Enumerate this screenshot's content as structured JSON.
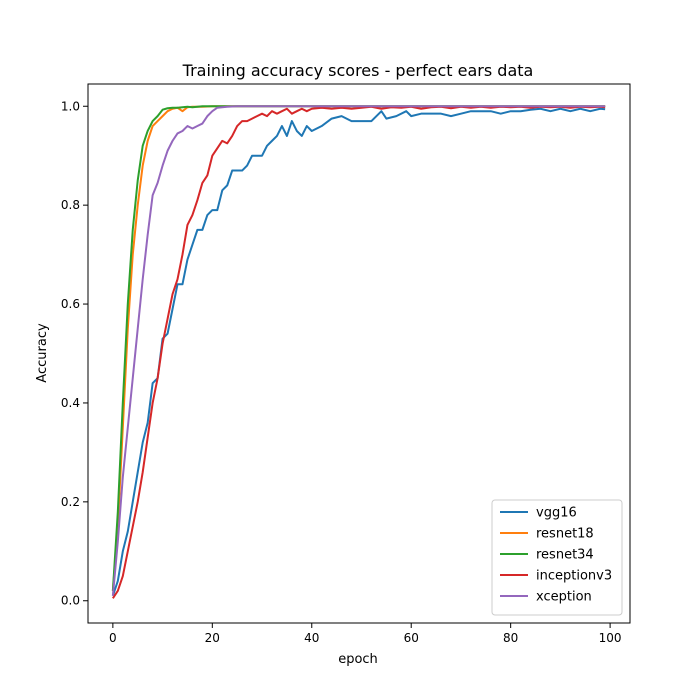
{
  "chart_data": {
    "type": "line",
    "title": "Training accuracy scores - perfect ears data",
    "xlabel": "epoch",
    "ylabel": "Accuracy",
    "xlim": [
      -5,
      104
    ],
    "ylim": [
      -0.045,
      1.045
    ],
    "xticks": [
      0,
      20,
      40,
      60,
      80,
      100
    ],
    "yticks": [
      0.0,
      0.2,
      0.4,
      0.6,
      0.8,
      1.0
    ],
    "xtick_labels": [
      "0",
      "20",
      "40",
      "60",
      "80",
      "100"
    ],
    "ytick_labels": [
      "0.0",
      "0.2",
      "0.4",
      "0.6",
      "0.8",
      "1.0"
    ],
    "grid": false,
    "legend": "bottom-right",
    "series": [
      {
        "name": "vgg16",
        "color": "#1f77b4",
        "points": [
          [
            0,
            0.01
          ],
          [
            1,
            0.04
          ],
          [
            2,
            0.1
          ],
          [
            3,
            0.14
          ],
          [
            4,
            0.2
          ],
          [
            5,
            0.26
          ],
          [
            6,
            0.32
          ],
          [
            7,
            0.36
          ],
          [
            8,
            0.44
          ],
          [
            9,
            0.45
          ],
          [
            10,
            0.53
          ],
          [
            11,
            0.54
          ],
          [
            12,
            0.59
          ],
          [
            13,
            0.64
          ],
          [
            14,
            0.64
          ],
          [
            15,
            0.69
          ],
          [
            16,
            0.72
          ],
          [
            17,
            0.75
          ],
          [
            18,
            0.75
          ],
          [
            19,
            0.78
          ],
          [
            20,
            0.79
          ],
          [
            21,
            0.79
          ],
          [
            22,
            0.83
          ],
          [
            23,
            0.84
          ],
          [
            24,
            0.87
          ],
          [
            25,
            0.87
          ],
          [
            26,
            0.87
          ],
          [
            27,
            0.88
          ],
          [
            28,
            0.9
          ],
          [
            29,
            0.9
          ],
          [
            30,
            0.9
          ],
          [
            31,
            0.92
          ],
          [
            32,
            0.93
          ],
          [
            33,
            0.94
          ],
          [
            34,
            0.96
          ],
          [
            35,
            0.94
          ],
          [
            36,
            0.97
          ],
          [
            37,
            0.95
          ],
          [
            38,
            0.94
          ],
          [
            39,
            0.96
          ],
          [
            40,
            0.95
          ],
          [
            42,
            0.96
          ],
          [
            44,
            0.975
          ],
          [
            46,
            0.98
          ],
          [
            48,
            0.97
          ],
          [
            50,
            0.97
          ],
          [
            52,
            0.97
          ],
          [
            54,
            0.99
          ],
          [
            55,
            0.975
          ],
          [
            57,
            0.98
          ],
          [
            59,
            0.99
          ],
          [
            60,
            0.98
          ],
          [
            62,
            0.985
          ],
          [
            64,
            0.985
          ],
          [
            66,
            0.985
          ],
          [
            68,
            0.98
          ],
          [
            70,
            0.985
          ],
          [
            72,
            0.99
          ],
          [
            74,
            0.99
          ],
          [
            76,
            0.99
          ],
          [
            78,
            0.985
          ],
          [
            80,
            0.99
          ],
          [
            82,
            0.99
          ],
          [
            84,
            0.993
          ],
          [
            86,
            0.995
          ],
          [
            88,
            0.99
          ],
          [
            90,
            0.995
          ],
          [
            92,
            0.99
          ],
          [
            94,
            0.995
          ],
          [
            96,
            0.99
          ],
          [
            98,
            0.995
          ],
          [
            99,
            0.994
          ]
        ]
      },
      {
        "name": "resnet18",
        "color": "#ff7f0e",
        "points": [
          [
            0,
            0.02
          ],
          [
            1,
            0.15
          ],
          [
            2,
            0.35
          ],
          [
            3,
            0.55
          ],
          [
            4,
            0.7
          ],
          [
            5,
            0.8
          ],
          [
            6,
            0.88
          ],
          [
            7,
            0.93
          ],
          [
            8,
            0.96
          ],
          [
            9,
            0.97
          ],
          [
            10,
            0.98
          ],
          [
            11,
            0.99
          ],
          [
            12,
            0.995
          ],
          [
            13,
            0.997
          ],
          [
            14,
            0.99
          ],
          [
            15,
            0.998
          ],
          [
            16,
            0.999
          ],
          [
            18,
            0.999
          ],
          [
            20,
            1.0
          ],
          [
            25,
            1.0
          ],
          [
            30,
            1.0
          ],
          [
            40,
            1.0
          ],
          [
            50,
            1.0
          ],
          [
            60,
            1.0
          ],
          [
            70,
            1.0
          ],
          [
            80,
            1.0
          ],
          [
            90,
            1.0
          ],
          [
            99,
            1.0
          ]
        ]
      },
      {
        "name": "resnet34",
        "color": "#2ca02c",
        "points": [
          [
            0,
            0.02
          ],
          [
            1,
            0.18
          ],
          [
            2,
            0.4
          ],
          [
            3,
            0.6
          ],
          [
            4,
            0.75
          ],
          [
            5,
            0.85
          ],
          [
            6,
            0.92
          ],
          [
            7,
            0.95
          ],
          [
            8,
            0.97
          ],
          [
            9,
            0.98
          ],
          [
            10,
            0.993
          ],
          [
            11,
            0.996
          ],
          [
            12,
            0.997
          ],
          [
            13,
            0.997
          ],
          [
            14,
            0.998
          ],
          [
            15,
            0.999
          ],
          [
            16,
            0.998
          ],
          [
            17,
            0.999
          ],
          [
            18,
            1.0
          ],
          [
            20,
            1.0
          ],
          [
            25,
            1.0
          ],
          [
            30,
            1.0
          ],
          [
            40,
            1.0
          ],
          [
            50,
            1.0
          ],
          [
            60,
            1.0
          ],
          [
            70,
            1.0
          ],
          [
            80,
            1.0
          ],
          [
            90,
            1.0
          ],
          [
            99,
            1.0
          ]
        ]
      },
      {
        "name": "inceptionv3",
        "color": "#d62728",
        "points": [
          [
            0,
            0.005
          ],
          [
            1,
            0.02
          ],
          [
            2,
            0.05
          ],
          [
            3,
            0.1
          ],
          [
            4,
            0.15
          ],
          [
            5,
            0.2
          ],
          [
            6,
            0.26
          ],
          [
            7,
            0.33
          ],
          [
            8,
            0.4
          ],
          [
            9,
            0.45
          ],
          [
            10,
            0.52
          ],
          [
            11,
            0.57
          ],
          [
            12,
            0.62
          ],
          [
            13,
            0.65
          ],
          [
            14,
            0.7
          ],
          [
            15,
            0.76
          ],
          [
            16,
            0.78
          ],
          [
            17,
            0.81
          ],
          [
            18,
            0.845
          ],
          [
            19,
            0.86
          ],
          [
            20,
            0.9
          ],
          [
            21,
            0.915
          ],
          [
            22,
            0.93
          ],
          [
            23,
            0.925
          ],
          [
            24,
            0.94
          ],
          [
            25,
            0.96
          ],
          [
            26,
            0.97
          ],
          [
            27,
            0.97
          ],
          [
            28,
            0.975
          ],
          [
            29,
            0.98
          ],
          [
            30,
            0.985
          ],
          [
            31,
            0.98
          ],
          [
            32,
            0.99
          ],
          [
            33,
            0.985
          ],
          [
            34,
            0.99
          ],
          [
            35,
            0.995
          ],
          [
            36,
            0.985
          ],
          [
            37,
            0.99
          ],
          [
            38,
            0.995
          ],
          [
            39,
            0.99
          ],
          [
            40,
            0.995
          ],
          [
            42,
            0.997
          ],
          [
            44,
            0.995
          ],
          [
            46,
            0.997
          ],
          [
            48,
            0.995
          ],
          [
            50,
            0.997
          ],
          [
            52,
            0.999
          ],
          [
            54,
            0.995
          ],
          [
            56,
            0.998
          ],
          [
            58,
            0.997
          ],
          [
            60,
            0.999
          ],
          [
            62,
            0.995
          ],
          [
            64,
            0.998
          ],
          [
            66,
            0.999
          ],
          [
            68,
            0.996
          ],
          [
            70,
            0.999
          ],
          [
            72,
            0.997
          ],
          [
            74,
            0.999
          ],
          [
            76,
            0.997
          ],
          [
            78,
            0.999
          ],
          [
            80,
            0.998
          ],
          [
            82,
            0.999
          ],
          [
            84,
            0.997
          ],
          [
            86,
            0.999
          ],
          [
            88,
            0.998
          ],
          [
            90,
            0.999
          ],
          [
            92,
            0.997
          ],
          [
            94,
            0.999
          ],
          [
            96,
            0.998
          ],
          [
            98,
            0.999
          ],
          [
            99,
            0.998
          ]
        ]
      },
      {
        "name": "xception",
        "color": "#9467bd",
        "points": [
          [
            0,
            0.01
          ],
          [
            1,
            0.12
          ],
          [
            2,
            0.25
          ],
          [
            3,
            0.35
          ],
          [
            4,
            0.45
          ],
          [
            5,
            0.55
          ],
          [
            6,
            0.65
          ],
          [
            7,
            0.74
          ],
          [
            8,
            0.82
          ],
          [
            9,
            0.845
          ],
          [
            10,
            0.88
          ],
          [
            11,
            0.91
          ],
          [
            12,
            0.93
          ],
          [
            13,
            0.945
          ],
          [
            14,
            0.95
          ],
          [
            15,
            0.96
          ],
          [
            16,
            0.955
          ],
          [
            17,
            0.96
          ],
          [
            18,
            0.965
          ],
          [
            19,
            0.98
          ],
          [
            20,
            0.99
          ],
          [
            21,
            0.997
          ],
          [
            22,
            0.998
          ],
          [
            23,
            0.999
          ],
          [
            25,
            1.0
          ],
          [
            30,
            1.0
          ],
          [
            40,
            1.0
          ],
          [
            50,
            1.0
          ],
          [
            60,
            1.0
          ],
          [
            70,
            1.0
          ],
          [
            80,
            1.0
          ],
          [
            90,
            1.0
          ],
          [
            99,
            1.0
          ]
        ]
      }
    ]
  }
}
